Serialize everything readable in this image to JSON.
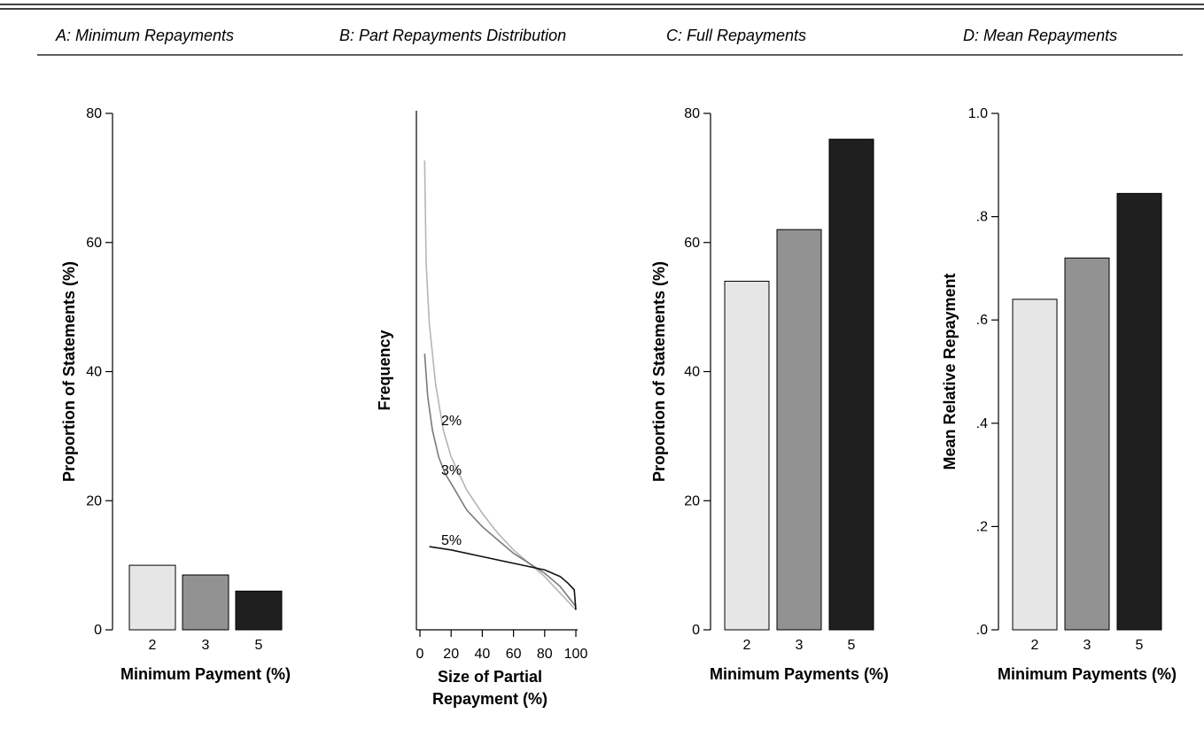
{
  "panel_titles": {
    "a": "A: Minimum Repayments",
    "b": "B: Part Repayments Distribution",
    "c": "C: Full Repayments",
    "d": "D: Mean Repayments"
  },
  "colors": {
    "bar_2": "#e6e6e6",
    "bar_3": "#929292",
    "bar_5": "#1f1f1f",
    "curve_2": "#b5b5b5",
    "curve_3": "#7a7a7a",
    "curve_5": "#111111"
  },
  "chart_data": [
    {
      "type": "bar",
      "categories": [
        "2",
        "3",
        "5"
      ],
      "values": [
        10,
        8.5,
        6
      ],
      "xlabel": "Minimum Payment (%)",
      "ylabel": "Proportion of Statements (%)",
      "ylim": [
        0,
        80
      ],
      "yticks": [
        "0",
        "20",
        "40",
        "60",
        "80"
      ],
      "grid": false
    },
    {
      "type": "line",
      "xlabel_lines": [
        "Size of Partial",
        "Repayment (%)"
      ],
      "ylabel": "Frequency",
      "xlim": [
        0,
        100
      ],
      "xticks": [
        "0",
        "20",
        "40",
        "60",
        "80",
        "100"
      ],
      "series": [
        {
          "name": "2%",
          "x": [
            3,
            4,
            6,
            10,
            15,
            20,
            30,
            40,
            50,
            60,
            70,
            80,
            90,
            100
          ],
          "y": [
            70.5,
            55,
            46,
            37,
            30,
            26,
            21,
            17.5,
            14.5,
            12,
            10,
            8,
            5.5,
            3
          ]
        },
        {
          "name": "3%",
          "x": [
            3,
            5,
            8,
            12,
            16,
            20,
            30,
            40,
            50,
            60,
            70,
            80,
            90,
            100
          ],
          "y": [
            41.5,
            35,
            30,
            26,
            23.5,
            22,
            18,
            15.5,
            13.5,
            11.5,
            10,
            8.5,
            6.5,
            3.5
          ]
        },
        {
          "name": "5%",
          "x": [
            6,
            20,
            40,
            60,
            70,
            80,
            85,
            90,
            95,
            99,
            100
          ],
          "y": [
            12.5,
            12,
            11,
            10,
            9.5,
            9,
            8.5,
            8,
            7,
            6,
            3
          ]
        }
      ],
      "grid": false
    },
    {
      "type": "bar",
      "categories": [
        "2",
        "3",
        "5"
      ],
      "values": [
        54,
        62,
        76
      ],
      "xlabel": "Minimum Payments (%)",
      "ylabel": "Proportion of Statements (%)",
      "ylim": [
        0,
        80
      ],
      "yticks": [
        "0",
        "20",
        "40",
        "60",
        "80"
      ],
      "grid": false
    },
    {
      "type": "bar",
      "categories": [
        "2",
        "3",
        "5"
      ],
      "values": [
        0.64,
        0.72,
        0.845
      ],
      "xlabel": "Minimum Payments (%)",
      "ylabel": "Mean Relative Repayment",
      "ylim": [
        0,
        1
      ],
      "yticks": [
        ".0",
        ".2",
        ".4",
        ".6",
        ".8",
        "1.0"
      ],
      "grid": false
    }
  ]
}
